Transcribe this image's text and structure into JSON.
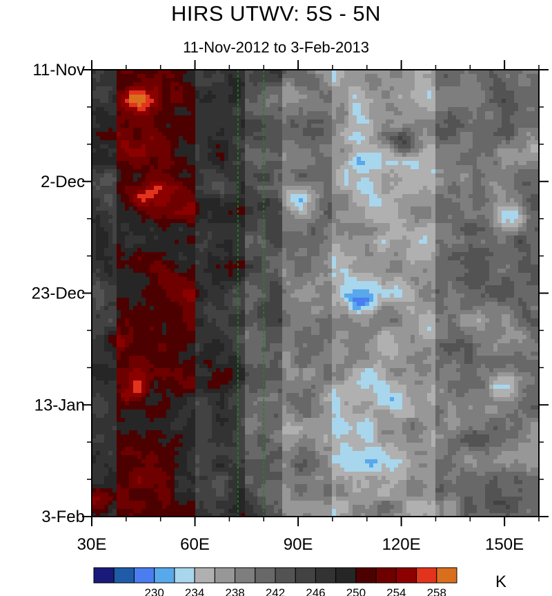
{
  "chart_data": {
    "type": "heatmap",
    "title": "HIRS UTWV: 5S - 5N",
    "subtitle": "11-Nov-2012 to 3-Feb-2013",
    "x_range": [
      30,
      160
    ],
    "x_ticks": [
      {
        "value": 30,
        "label": "30E"
      },
      {
        "value": 60,
        "label": "60E"
      },
      {
        "value": 90,
        "label": "90E"
      },
      {
        "value": 120,
        "label": "120E"
      },
      {
        "value": 150,
        "label": "150E"
      }
    ],
    "y_range_days": [
      0,
      84
    ],
    "y_ticks": [
      {
        "value": 0,
        "label": "11-Nov"
      },
      {
        "value": 21,
        "label": "2-Dec"
      },
      {
        "value": 42,
        "label": "23-Dec"
      },
      {
        "value": 63,
        "label": "13-Jan"
      },
      {
        "value": 84,
        "label": "3-Feb"
      }
    ],
    "reference_lines_x": [
      72.5,
      80
    ],
    "colorbar": {
      "unit": "K",
      "colors": [
        "#1a1a7a",
        "#1f5ca8",
        "#4a7df0",
        "#58a8ec",
        "#a8d6ec",
        "#b0b0b0",
        "#979797",
        "#7e7e7e",
        "#686868",
        "#535353",
        "#424242",
        "#333333",
        "#262626",
        "#4d0000",
        "#6e0000",
        "#8c0000",
        "#e2341c",
        "#d96f1c"
      ],
      "tick_labels": [
        "230",
        "234",
        "238",
        "242",
        "246",
        "250",
        "254",
        "258"
      ]
    },
    "longitude_bands": [
      {
        "lon": [
          30,
          37
        ],
        "value": 247
      },
      {
        "lon": [
          37,
          60
        ],
        "value": 251
      },
      {
        "lon": [
          60,
          75
        ],
        "value": 247
      },
      {
        "lon": [
          75,
          85
        ],
        "value": 243
      },
      {
        "lon": [
          85,
          100
        ],
        "value": 239
      },
      {
        "lon": [
          100,
          130
        ],
        "value": 236
      },
      {
        "lon": [
          130,
          160
        ],
        "value": 240
      }
    ],
    "features": [
      {
        "lon": 43,
        "day": 6,
        "value": 256
      },
      {
        "lon": 44,
        "day": 24,
        "value": 256
      },
      {
        "lon": 38,
        "day": 51,
        "value": 256
      },
      {
        "lon": 42,
        "day": 61,
        "value": 256
      },
      {
        "lon": 32,
        "day": 81,
        "value": 255
      },
      {
        "lon": 90,
        "day": 24,
        "value": 232
      },
      {
        "lon": 108,
        "day": 44,
        "value": 231
      },
      {
        "lon": 112,
        "day": 58,
        "value": 231
      },
      {
        "lon": 125,
        "day": 32,
        "value": 233
      },
      {
        "lon": 150,
        "day": 59,
        "value": 232
      },
      {
        "lon": 152,
        "day": 28,
        "value": 234
      },
      {
        "lon": 120,
        "day": 14,
        "value": 245
      },
      {
        "lon": 140,
        "day": 70,
        "value": 244
      }
    ]
  }
}
